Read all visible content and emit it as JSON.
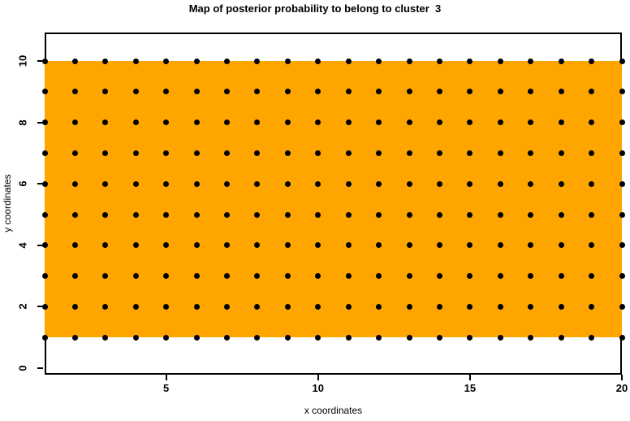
{
  "chart_data": {
    "type": "heatmap",
    "title": "Map of posterior probability to belong to cluster  3",
    "xlabel": "x coordinates",
    "ylabel": "y coordinates",
    "x_ticks": [
      5,
      10,
      15,
      20
    ],
    "y_ticks": [
      0,
      2,
      4,
      6,
      8,
      10
    ],
    "axis_ranges": {
      "x": [
        1,
        20
      ],
      "y": [
        -0.21,
        10.93
      ]
    },
    "uniform_region": {
      "comment_visible_content": "single uniform-colored probability band covering the full grid",
      "x_from": 1,
      "x_to": 20,
      "y_from": 1,
      "y_to": 10,
      "color": "#FFA500"
    },
    "grid_points": {
      "x_min": 1,
      "x_max": 20,
      "x_step": 1,
      "y_min": 1,
      "y_max": 10,
      "y_step": 1,
      "marker": "filled-circle",
      "marker_color": "#000000",
      "marker_diameter_px": 7
    },
    "colors": {
      "fill": "#FFA500",
      "points": "#000000",
      "axis": "#000000",
      "background": "#FFFFFF"
    },
    "legend": "none",
    "grid_lines": "off"
  }
}
